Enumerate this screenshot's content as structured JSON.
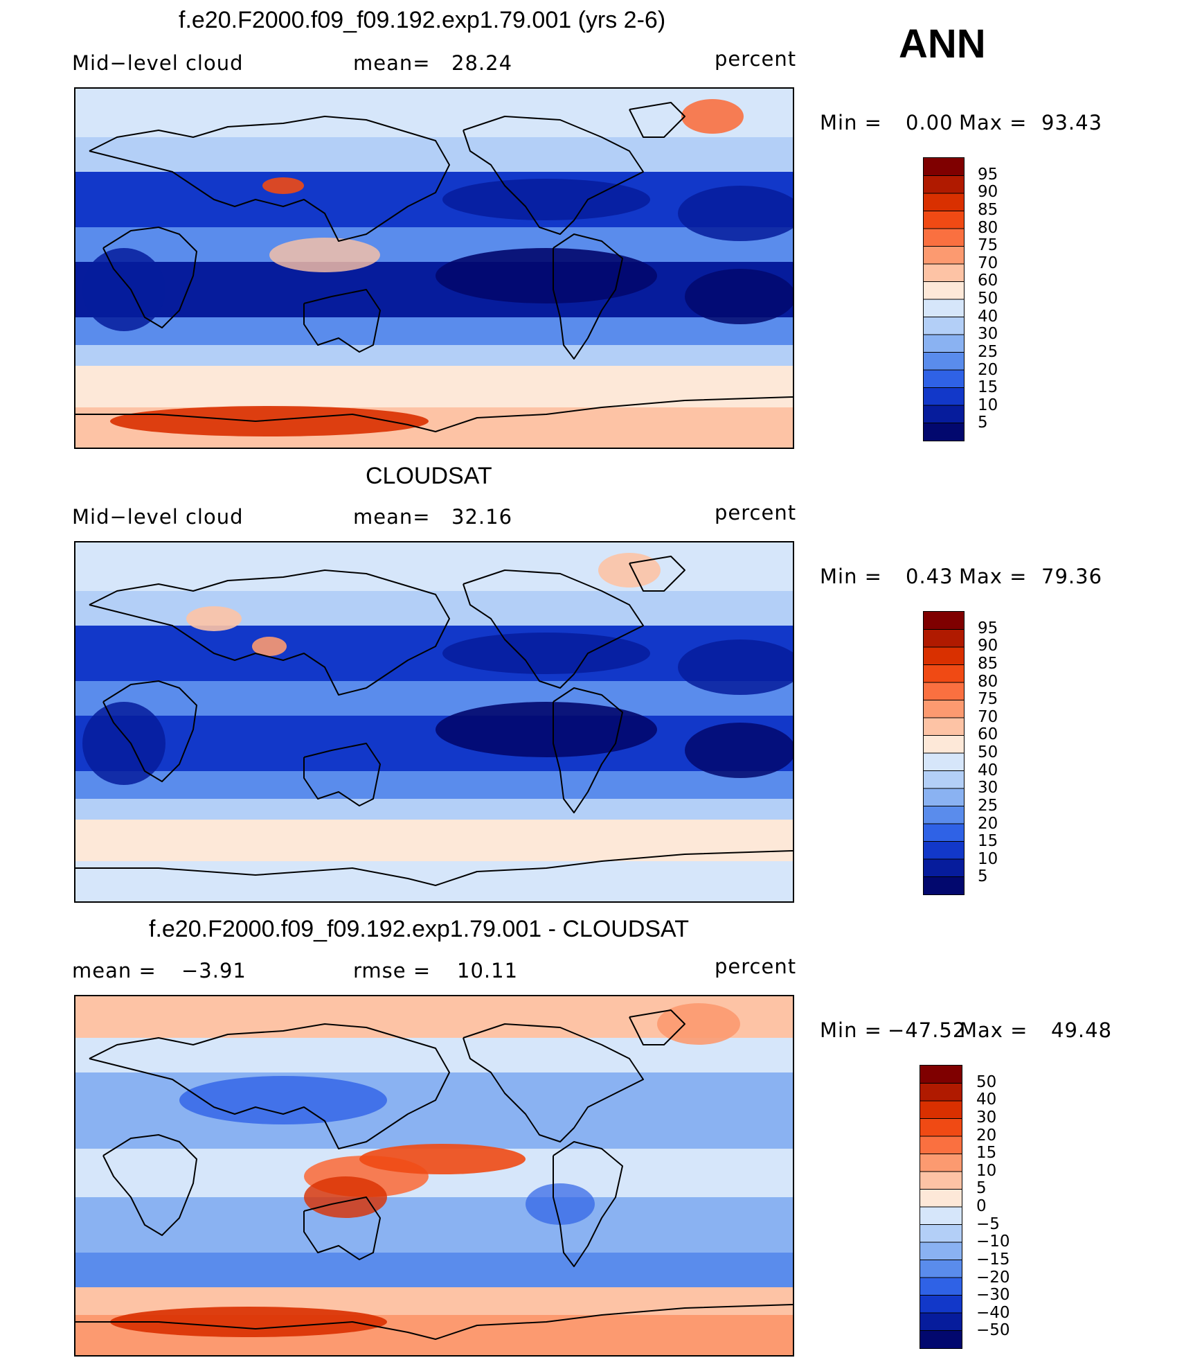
{
  "header": {
    "period": "ANN"
  },
  "panels": [
    {
      "title": "f.e20.F2000.f09_f09.192.exp1.79.001 (yrs 2-6)",
      "left_label": "Mid−level cloud",
      "mean_label": "mean=",
      "mean_value": "28.24",
      "units": "percent",
      "min_label": "Min  =",
      "min_value": "0.00",
      "max_label": "Max  =",
      "max_value": "93.43",
      "field_level": 0.45
    },
    {
      "title": "CLOUDSAT",
      "left_label": "Mid−level cloud",
      "mean_label": "mean=",
      "mean_value": "32.16",
      "units": "percent",
      "min_label": "Min  =",
      "min_value": "0.43",
      "max_label": "Max  =",
      "max_value": "79.36",
      "field_level": 0.5
    },
    {
      "title": "f.e20.F2000.f09_f09.192.exp1.79.001 - CLOUDSAT",
      "left_label": "mean  =",
      "mean_label": "rmse  =",
      "mean_value": "10.11",
      "left_value": "−3.91",
      "units": "percent",
      "min_label": "Min  =",
      "min_value": "−47.52",
      "max_label": "Max  =",
      "max_value": "49.48",
      "field_level": 0.5
    }
  ],
  "colorbars": {
    "abs": {
      "labels": [
        "95",
        "90",
        "85",
        "80",
        "75",
        "70",
        "60",
        "50",
        "40",
        "30",
        "25",
        "20",
        "15",
        "10",
        "5"
      ],
      "colors": [
        "#7f0000",
        "#b01a00",
        "#d93000",
        "#f04a14",
        "#fa7040",
        "#fc9a70",
        "#fdc3a5",
        "#fde8d8",
        "#d6e6fa",
        "#b3cff7",
        "#8ab2f2",
        "#5a8cec",
        "#2f62e6",
        "#1238c9",
        "#061c9c",
        "#02086e"
      ]
    },
    "diff": {
      "labels": [
        "50",
        "40",
        "30",
        "20",
        "15",
        "10",
        "5",
        "0",
        "−5",
        "−10",
        "−15",
        "−20",
        "−30",
        "−40",
        "−50"
      ],
      "colors": [
        "#7f0000",
        "#b01a00",
        "#d93000",
        "#f04a14",
        "#fa7040",
        "#fc9a70",
        "#fdc3a5",
        "#fde8d8",
        "#d6e6fa",
        "#b3cff7",
        "#8ab2f2",
        "#5a8cec",
        "#2f62e6",
        "#1238c9",
        "#061c9c",
        "#02086e"
      ]
    }
  }
}
